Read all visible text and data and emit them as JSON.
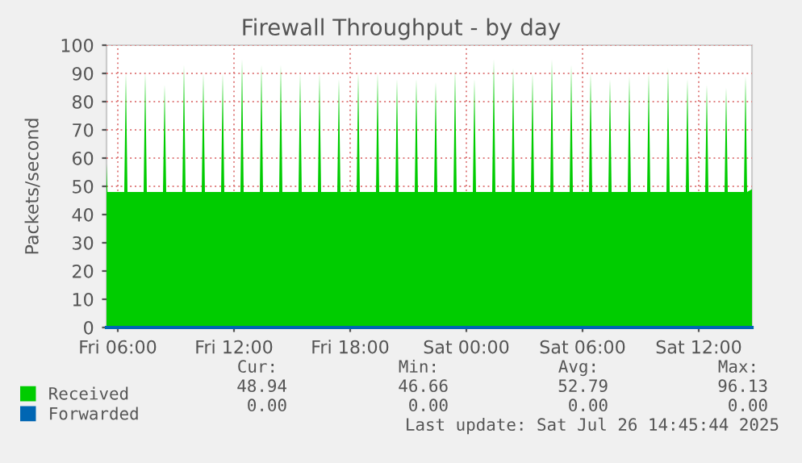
{
  "chart_data": {
    "type": "area",
    "title": "Firewall Throughput - by day",
    "ylabel": "Packets/second",
    "x": [
      "2025-07-25T05:25",
      "2025-07-25T05:28",
      "2025-07-25T06:20",
      "2025-07-25T06:25",
      "2025-07-25T06:30",
      "2025-07-25T07:20",
      "2025-07-25T07:25",
      "2025-07-25T07:30",
      "2025-07-25T08:20",
      "2025-07-25T08:25",
      "2025-07-25T08:30",
      "2025-07-25T09:20",
      "2025-07-25T09:25",
      "2025-07-25T09:30",
      "2025-07-25T10:20",
      "2025-07-25T10:25",
      "2025-07-25T10:30",
      "2025-07-25T11:20",
      "2025-07-25T11:25",
      "2025-07-25T11:30",
      "2025-07-25T12:20",
      "2025-07-25T12:25",
      "2025-07-25T12:30",
      "2025-07-25T13:20",
      "2025-07-25T13:25",
      "2025-07-25T13:30",
      "2025-07-25T14:20",
      "2025-07-25T14:25",
      "2025-07-25T14:30",
      "2025-07-25T15:20",
      "2025-07-25T15:25",
      "2025-07-25T15:30",
      "2025-07-25T16:20",
      "2025-07-25T16:25",
      "2025-07-25T16:30",
      "2025-07-25T17:20",
      "2025-07-25T17:25",
      "2025-07-25T17:30",
      "2025-07-25T18:20",
      "2025-07-25T18:25",
      "2025-07-25T18:30",
      "2025-07-25T19:20",
      "2025-07-25T19:25",
      "2025-07-25T19:30",
      "2025-07-25T20:20",
      "2025-07-25T20:25",
      "2025-07-25T20:30",
      "2025-07-25T21:20",
      "2025-07-25T21:25",
      "2025-07-25T21:30",
      "2025-07-25T22:20",
      "2025-07-25T22:25",
      "2025-07-25T22:30",
      "2025-07-25T23:20",
      "2025-07-25T23:25",
      "2025-07-25T23:30",
      "2025-07-26T00:20",
      "2025-07-26T00:25",
      "2025-07-26T00:30",
      "2025-07-26T01:20",
      "2025-07-26T01:25",
      "2025-07-26T01:30",
      "2025-07-26T02:20",
      "2025-07-26T02:25",
      "2025-07-26T02:30",
      "2025-07-26T03:20",
      "2025-07-26T03:25",
      "2025-07-26T03:30",
      "2025-07-26T04:20",
      "2025-07-26T04:25",
      "2025-07-26T04:30",
      "2025-07-26T05:20",
      "2025-07-26T05:25",
      "2025-07-26T05:30",
      "2025-07-26T06:20",
      "2025-07-26T06:25",
      "2025-07-26T06:30",
      "2025-07-26T07:20",
      "2025-07-26T07:25",
      "2025-07-26T07:30",
      "2025-07-26T08:20",
      "2025-07-26T08:25",
      "2025-07-26T08:30",
      "2025-07-26T09:20",
      "2025-07-26T09:25",
      "2025-07-26T09:30",
      "2025-07-26T10:20",
      "2025-07-26T10:25",
      "2025-07-26T10:30",
      "2025-07-26T11:20",
      "2025-07-26T11:25",
      "2025-07-26T11:30",
      "2025-07-26T12:20",
      "2025-07-26T12:25",
      "2025-07-26T12:30",
      "2025-07-26T13:20",
      "2025-07-26T13:25",
      "2025-07-26T13:30",
      "2025-07-26T14:20",
      "2025-07-26T14:25",
      "2025-07-26T14:30",
      "2025-07-26T14:45"
    ],
    "series": [
      {
        "name": "Received",
        "color": "#00cc00",
        "values": [
          58,
          48,
          48,
          90,
          48,
          48,
          90,
          48,
          48,
          86,
          48,
          48,
          93,
          48,
          48,
          90,
          48,
          48,
          90,
          48,
          48,
          95,
          48,
          48,
          93,
          48,
          48,
          93,
          48,
          48,
          90,
          48,
          48,
          90,
          48,
          48,
          88,
          48,
          48,
          90,
          48,
          48,
          90,
          48,
          48,
          88,
          48,
          48,
          88,
          48,
          48,
          87,
          48,
          48,
          91,
          48,
          48,
          88,
          48,
          48,
          95,
          48,
          48,
          92,
          48,
          48,
          90,
          48,
          48,
          95,
          48,
          48,
          93,
          48,
          48,
          90,
          48,
          48,
          88,
          48,
          48,
          89,
          48,
          48,
          90,
          48,
          48,
          92,
          48,
          48,
          88,
          48,
          48,
          86,
          48,
          48,
          85,
          48,
          48,
          89,
          48,
          49
        ]
      },
      {
        "name": "Forwarded",
        "color": "#0066b3",
        "type": "line",
        "x": [
          "2025-07-25T05:25",
          "2025-07-26T14:45"
        ],
        "values": [
          0,
          0
        ]
      }
    ],
    "xlim": [
      "2025-07-25T05:25",
      "2025-07-26T14:45"
    ],
    "xticks": [
      {
        "value": "2025-07-25T06:00",
        "label": "Fri 06:00"
      },
      {
        "value": "2025-07-25T12:00",
        "label": "Fri 12:00"
      },
      {
        "value": "2025-07-25T18:00",
        "label": "Fri 18:00"
      },
      {
        "value": "2025-07-26T00:00",
        "label": "Sat 00:00"
      },
      {
        "value": "2025-07-26T06:00",
        "label": "Sat 06:00"
      },
      {
        "value": "2025-07-26T12:00",
        "label": "Sat 12:00"
      }
    ],
    "ylim": [
      0,
      100
    ],
    "yticks": [
      0,
      10,
      20,
      30,
      40,
      50,
      60,
      70,
      80,
      90,
      100
    ],
    "grid": true,
    "legend": "bottom left",
    "annotations": [
      "Cur:",
      "Min:",
      "Avg:",
      "Max:",
      "48.94",
      "46.66",
      "52.79",
      "96.13",
      "0.00",
      "0.00",
      "0.00",
      "0.00",
      "Last update: Sat Jul 26 14:45:44 2025"
    ]
  }
}
